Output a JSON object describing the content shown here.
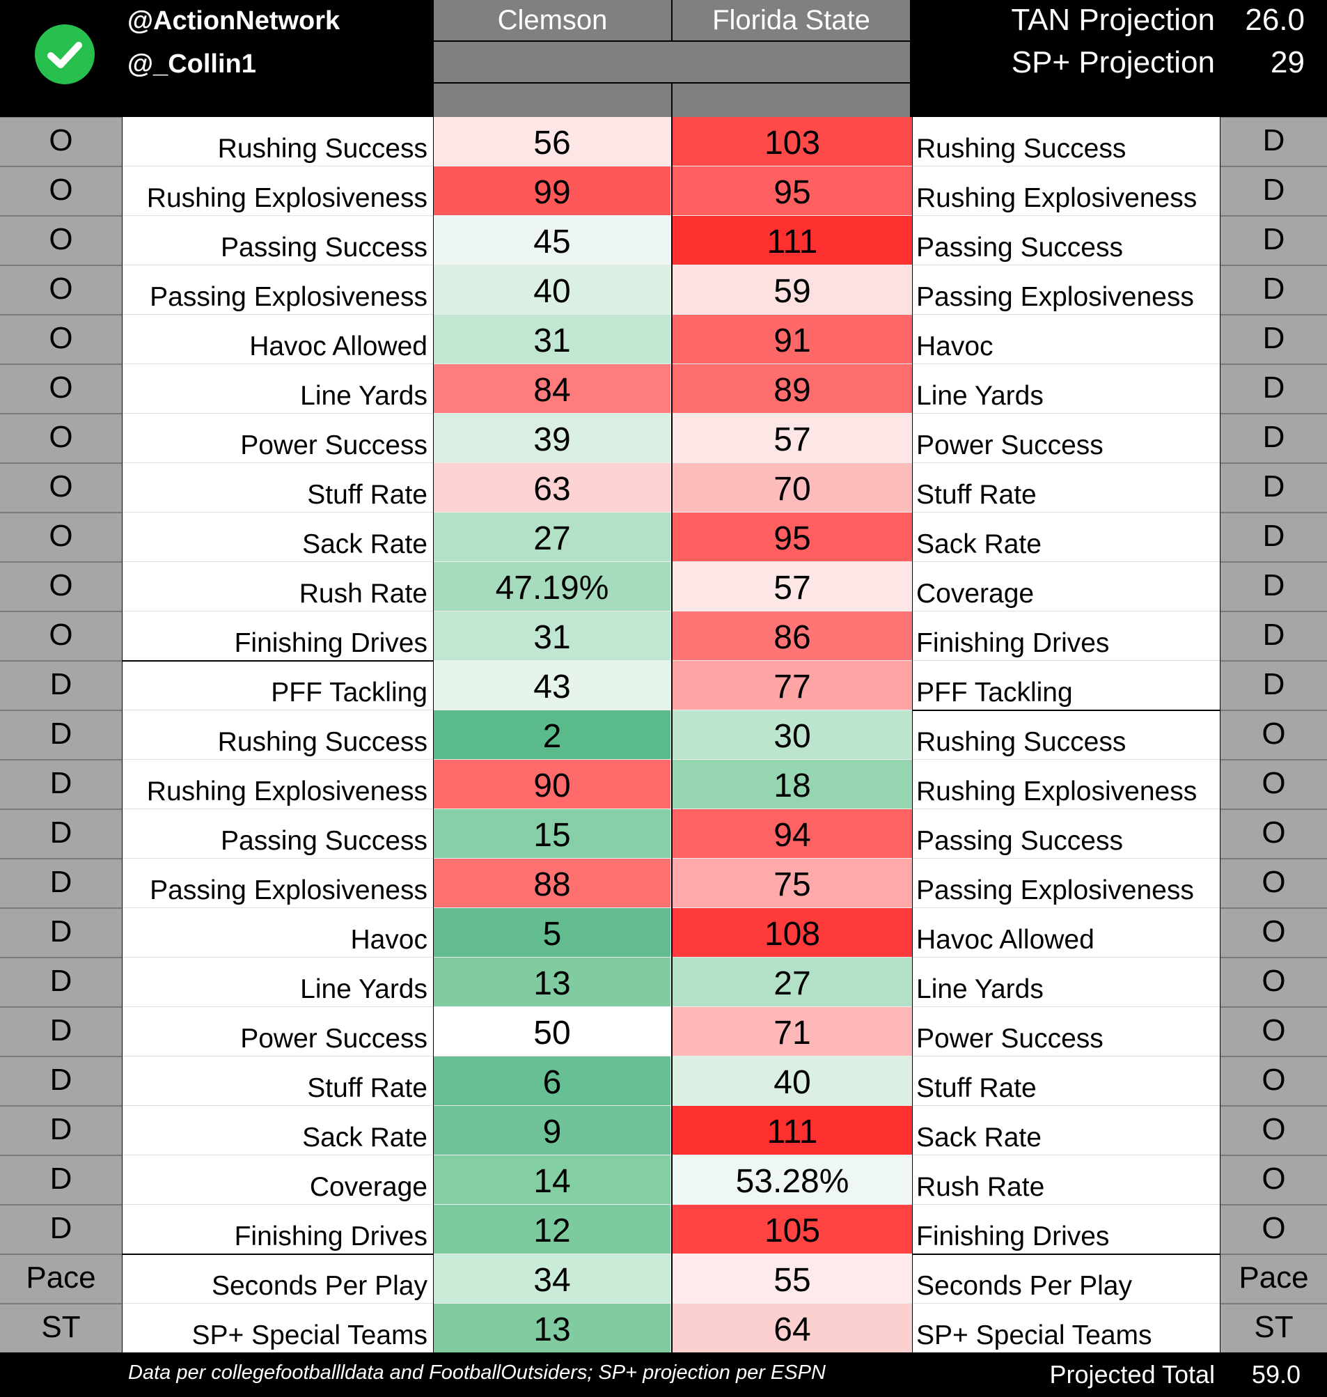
{
  "header": {
    "handle_1": "@ActionNetwork",
    "handle_2": "@_Collin1",
    "team_left": "Clemson",
    "team_right": "Florida State",
    "tan_label": "TAN Projection",
    "tan_value": "26.0",
    "sp_label": "SP+ Projection",
    "sp_value": "29",
    "check_color": "#27c04f"
  },
  "rows": [
    {
      "left_side": "O",
      "left_label": "Rushing Success",
      "v1": "56",
      "v1_bg": "#fde6e6",
      "v2": "103",
      "v2_bg": "#ff4a4a",
      "right_label": "Rushing Success",
      "right_side": "D"
    },
    {
      "left_side": "O",
      "left_label": "Rushing Explosiveness",
      "v1": "99",
      "v1_bg": "#ff5858",
      "v2": "95",
      "v2_bg": "#ff5f5f",
      "right_label": "Rushing Explosiveness",
      "right_side": "D"
    },
    {
      "left_side": "O",
      "left_label": "Passing Success",
      "v1": "45",
      "v1_bg": "#eef6f1",
      "v2": "111",
      "v2_bg": "#ff3030",
      "right_label": "Passing Success",
      "right_side": "D"
    },
    {
      "left_side": "O",
      "left_label": "Passing Explosiveness",
      "v1": "40",
      "v1_bg": "#daf0e3",
      "v2": "59",
      "v2_bg": "#fde0e0",
      "right_label": "Passing Explosiveness",
      "right_side": "D"
    },
    {
      "left_side": "O",
      "left_label": "Havoc Allowed",
      "v1": "31",
      "v1_bg": "#c1e7d2",
      "v2": "91",
      "v2_bg": "#ff6868",
      "right_label": "Havoc",
      "right_side": "D"
    },
    {
      "left_side": "O",
      "left_label": "Line Yards",
      "v1": "84",
      "v1_bg": "#ff7c7c",
      "v2": "89",
      "v2_bg": "#ff6e6e",
      "right_label": "Line Yards",
      "right_side": "D"
    },
    {
      "left_side": "O",
      "left_label": "Power Success",
      "v1": "39",
      "v1_bg": "#d9efe2",
      "v2": "57",
      "v2_bg": "#fde6e6",
      "right_label": "Power Success",
      "right_side": "D"
    },
    {
      "left_side": "O",
      "left_label": "Stuff Rate",
      "v1": "63",
      "v1_bg": "#fdd2d2",
      "v2": "70",
      "v2_bg": "#fdbcbc",
      "right_label": "Stuff Rate",
      "right_side": "D"
    },
    {
      "left_side": "O",
      "left_label": "Sack Rate",
      "v1": "27",
      "v1_bg": "#b3e1c7",
      "v2": "95",
      "v2_bg": "#ff5f5f",
      "right_label": "Sack Rate",
      "right_side": "D"
    },
    {
      "left_side": "O",
      "left_label": "Rush Rate",
      "v1": "47.19%",
      "v1_bg": "#a6dcbd",
      "v2": "57",
      "v2_bg": "#fde6e6",
      "right_label": "Coverage",
      "right_side": "D"
    },
    {
      "left_side": "O",
      "left_label": "Finishing Drives",
      "v1": "31",
      "v1_bg": "#c1e7d2",
      "v2": "86",
      "v2_bg": "#ff7575",
      "right_label": "Finishing Drives",
      "right_side": "D"
    },
    {
      "left_side": "D",
      "left_label": "PFF Tackling",
      "v1": "43",
      "v1_bg": "#e7f4ec",
      "v2": "77",
      "v2_bg": "#fea4a4",
      "right_label": "PFF Tackling",
      "right_side": "D"
    },
    {
      "left_side": "D",
      "left_label": "Rushing Success",
      "v1": "2",
      "v1_bg": "#5bba8a",
      "v2": "30",
      "v2_bg": "#bde5ce",
      "right_label": "Rushing Success",
      "right_side": "O"
    },
    {
      "left_side": "D",
      "left_label": "Rushing Explosiveness",
      "v1": "90",
      "v1_bg": "#ff6b6b",
      "v2": "18",
      "v2_bg": "#95d6b0",
      "right_label": "Rushing Explosiveness",
      "right_side": "O"
    },
    {
      "left_side": "D",
      "left_label": "Passing Success",
      "v1": "15",
      "v1_bg": "#87cfa6",
      "v2": "94",
      "v2_bg": "#ff6262",
      "right_label": "Passing Success",
      "right_side": "O"
    },
    {
      "left_side": "D",
      "left_label": "Passing Explosiveness",
      "v1": "88",
      "v1_bg": "#ff7171",
      "v2": "75",
      "v2_bg": "#feaaaa",
      "right_label": "Passing Explosiveness",
      "right_side": "O"
    },
    {
      "left_side": "D",
      "left_label": "Havoc",
      "v1": "5",
      "v1_bg": "#63bd90",
      "v2": "108",
      "v2_bg": "#ff3a3a",
      "right_label": "Havoc Allowed",
      "right_side": "O"
    },
    {
      "left_side": "D",
      "left_label": "Line Yards",
      "v1": "13",
      "v1_bg": "#80cca0",
      "v2": "27",
      "v2_bg": "#b3e1c7",
      "right_label": "Line Yards",
      "right_side": "O"
    },
    {
      "left_side": "D",
      "left_label": "Power Success",
      "v1": "50",
      "v1_bg": "#ffffff",
      "v2": "71",
      "v2_bg": "#feb8b8",
      "right_label": "Power Success",
      "right_side": "O"
    },
    {
      "left_side": "D",
      "left_label": "Stuff Rate",
      "v1": "6",
      "v1_bg": "#66be93",
      "v2": "40",
      "v2_bg": "#dbefe3",
      "right_label": "Stuff Rate",
      "right_side": "O"
    },
    {
      "left_side": "D",
      "left_label": "Sack Rate",
      "v1": "9",
      "v1_bg": "#70c399",
      "v2": "111",
      "v2_bg": "#ff3030",
      "right_label": "Sack Rate",
      "right_side": "O"
    },
    {
      "left_side": "D",
      "left_label": "Coverage",
      "v1": "14",
      "v1_bg": "#83cea3",
      "v2": "53.28%",
      "v2_bg": "#eef7f2",
      "right_label": "Rush Rate",
      "right_side": "O"
    },
    {
      "left_side": "D",
      "left_label": "Finishing Drives",
      "v1": "12",
      "v1_bg": "#7dca9e",
      "v2": "105",
      "v2_bg": "#ff4242",
      "right_label": "Finishing Drives",
      "right_side": "O"
    },
    {
      "left_side": "Pace",
      "left_label": "Seconds Per Play",
      "v1": "34",
      "v1_bg": "#cbebd9",
      "v2": "55",
      "v2_bg": "#feeaea",
      "right_label": "Seconds Per Play",
      "right_side": "Pace"
    },
    {
      "left_side": "ST",
      "left_label": "SP+ Special Teams",
      "v1": "13",
      "v1_bg": "#80cca0",
      "v2": "64",
      "v2_bg": "#fdd0d0",
      "right_label": "SP+ Special Teams",
      "right_side": "ST"
    }
  ],
  "footer": {
    "note": "Data per collegefootballldata and FootballOutsiders; SP+ projection per ESPN",
    "total_label": "Projected Total",
    "total_value": "59.0"
  }
}
